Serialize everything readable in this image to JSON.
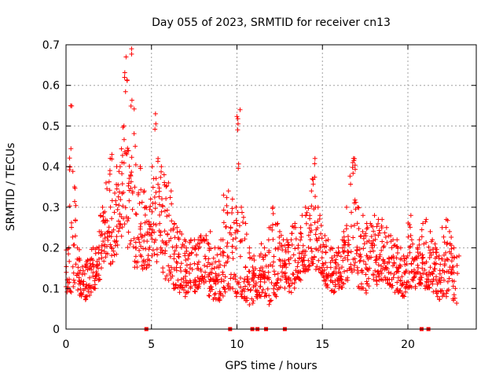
{
  "chart_data": {
    "type": "scatter",
    "title": "Day 055 of 2023, SRMTID for receiver cn13",
    "xlabel": "GPS time / hours",
    "ylabel": "SRMTID / TECUs",
    "xlim": [
      0,
      24
    ],
    "ylim": [
      0,
      0.7
    ],
    "x_ticks": [
      0,
      5,
      10,
      15,
      20
    ],
    "x_tick_labels": [
      "0",
      "5",
      "10",
      "15",
      "20"
    ],
    "y_ticks": [
      0,
      0.1,
      0.2,
      0.3,
      0.4,
      0.5,
      0.6,
      0.7
    ],
    "y_tick_labels": [
      "0",
      "0.1",
      "0.2",
      "0.3",
      "0.4",
      "0.5",
      "0.6",
      "0.7"
    ],
    "grid": true,
    "marker": "plus",
    "series_color": "#ff0000",
    "envelope": [
      [
        0.0,
        0.09,
        0.2
      ],
      [
        0.2,
        0.08,
        0.55
      ],
      [
        0.4,
        0.1,
        0.35
      ],
      [
        0.6,
        0.09,
        0.2
      ],
      [
        0.8,
        0.08,
        0.17
      ],
      [
        1.0,
        0.07,
        0.16
      ],
      [
        1.2,
        0.08,
        0.17
      ],
      [
        1.4,
        0.09,
        0.2
      ],
      [
        1.6,
        0.1,
        0.2
      ],
      [
        1.8,
        0.12,
        0.24
      ],
      [
        2.0,
        0.14,
        0.3
      ],
      [
        2.2,
        0.16,
        0.36
      ],
      [
        2.4,
        0.18,
        0.42
      ],
      [
        2.6,
        0.16,
        0.43
      ],
      [
        2.8,
        0.18,
        0.4
      ],
      [
        3.0,
        0.2,
        0.4
      ],
      [
        3.2,
        0.22,
        0.5
      ],
      [
        3.4,
        0.18,
        0.67
      ],
      [
        3.6,
        0.2,
        0.44
      ],
      [
        3.8,
        0.2,
        0.69
      ],
      [
        4.0,
        0.15,
        0.45
      ],
      [
        4.2,
        0.18,
        0.4
      ],
      [
        4.4,
        0.14,
        0.34
      ],
      [
        4.6,
        0.15,
        0.3
      ],
      [
        4.8,
        0.14,
        0.32
      ],
      [
        5.0,
        0.18,
        0.4
      ],
      [
        5.2,
        0.16,
        0.53
      ],
      [
        5.4,
        0.18,
        0.4
      ],
      [
        5.6,
        0.14,
        0.38
      ],
      [
        5.8,
        0.12,
        0.36
      ],
      [
        6.0,
        0.12,
        0.34
      ],
      [
        6.2,
        0.1,
        0.26
      ],
      [
        6.4,
        0.1,
        0.25
      ],
      [
        6.6,
        0.09,
        0.24
      ],
      [
        6.8,
        0.08,
        0.22
      ],
      [
        7.0,
        0.09,
        0.2
      ],
      [
        7.2,
        0.1,
        0.22
      ],
      [
        7.4,
        0.09,
        0.22
      ],
      [
        7.6,
        0.1,
        0.22
      ],
      [
        7.8,
        0.11,
        0.23
      ],
      [
        8.0,
        0.1,
        0.23
      ],
      [
        8.2,
        0.08,
        0.22
      ],
      [
        8.4,
        0.07,
        0.24
      ],
      [
        8.6,
        0.06,
        0.2
      ],
      [
        8.8,
        0.07,
        0.2
      ],
      [
        9.0,
        0.08,
        0.22
      ],
      [
        9.2,
        0.08,
        0.33
      ],
      [
        9.4,
        0.09,
        0.34
      ],
      [
        9.6,
        0.1,
        0.32
      ],
      [
        9.8,
        0.08,
        0.3
      ],
      [
        10.0,
        0.07,
        0.54
      ],
      [
        10.2,
        0.08,
        0.3
      ],
      [
        10.4,
        0.07,
        0.26
      ],
      [
        10.6,
        0.06,
        0.2
      ],
      [
        10.8,
        0.06,
        0.18
      ],
      [
        11.0,
        0.07,
        0.17
      ],
      [
        11.2,
        0.08,
        0.18
      ],
      [
        11.4,
        0.09,
        0.21
      ],
      [
        11.6,
        0.08,
        0.2
      ],
      [
        11.8,
        0.06,
        0.25
      ],
      [
        12.0,
        0.07,
        0.3
      ],
      [
        12.2,
        0.08,
        0.26
      ],
      [
        12.4,
        0.1,
        0.24
      ],
      [
        12.6,
        0.1,
        0.22
      ],
      [
        12.8,
        0.11,
        0.22
      ],
      [
        13.0,
        0.09,
        0.22
      ],
      [
        13.2,
        0.1,
        0.26
      ],
      [
        13.4,
        0.12,
        0.25
      ],
      [
        13.6,
        0.12,
        0.25
      ],
      [
        13.8,
        0.14,
        0.28
      ],
      [
        14.0,
        0.14,
        0.3
      ],
      [
        14.2,
        0.15,
        0.34
      ],
      [
        14.4,
        0.16,
        0.42
      ],
      [
        14.6,
        0.14,
        0.3
      ],
      [
        14.8,
        0.12,
        0.28
      ],
      [
        15.0,
        0.11,
        0.23
      ],
      [
        15.2,
        0.1,
        0.22
      ],
      [
        15.4,
        0.09,
        0.2
      ],
      [
        15.6,
        0.09,
        0.18
      ],
      [
        15.8,
        0.1,
        0.2
      ],
      [
        16.0,
        0.1,
        0.22
      ],
      [
        16.2,
        0.11,
        0.24
      ],
      [
        16.4,
        0.12,
        0.3
      ],
      [
        16.6,
        0.14,
        0.41
      ],
      [
        16.8,
        0.14,
        0.42
      ],
      [
        17.0,
        0.1,
        0.3
      ],
      [
        17.2,
        0.1,
        0.28
      ],
      [
        17.4,
        0.08,
        0.26
      ],
      [
        17.6,
        0.1,
        0.25
      ],
      [
        17.8,
        0.1,
        0.26
      ],
      [
        18.0,
        0.11,
        0.28
      ],
      [
        18.2,
        0.12,
        0.27
      ],
      [
        18.4,
        0.12,
        0.27
      ],
      [
        18.6,
        0.12,
        0.25
      ],
      [
        18.8,
        0.1,
        0.23
      ],
      [
        19.0,
        0.1,
        0.22
      ],
      [
        19.2,
        0.09,
        0.22
      ],
      [
        19.4,
        0.09,
        0.2
      ],
      [
        19.6,
        0.08,
        0.18
      ],
      [
        19.8,
        0.08,
        0.18
      ],
      [
        20.0,
        0.09,
        0.28
      ],
      [
        20.2,
        0.1,
        0.22
      ],
      [
        20.4,
        0.1,
        0.2
      ],
      [
        20.6,
        0.11,
        0.22
      ],
      [
        20.8,
        0.12,
        0.26
      ],
      [
        21.0,
        0.1,
        0.27
      ],
      [
        21.2,
        0.1,
        0.24
      ],
      [
        21.4,
        0.09,
        0.22
      ],
      [
        21.6,
        0.08,
        0.2
      ],
      [
        21.8,
        0.07,
        0.18
      ],
      [
        22.0,
        0.06,
        0.25
      ],
      [
        22.2,
        0.08,
        0.27
      ],
      [
        22.4,
        0.1,
        0.24
      ],
      [
        22.6,
        0.07,
        0.2
      ],
      [
        22.8,
        0.06,
        0.18
      ]
    ],
    "zero_markers_x": [
      4.7,
      9.6,
      10.9,
      11.2,
      11.7,
      12.8,
      20.8,
      21.2
    ]
  }
}
